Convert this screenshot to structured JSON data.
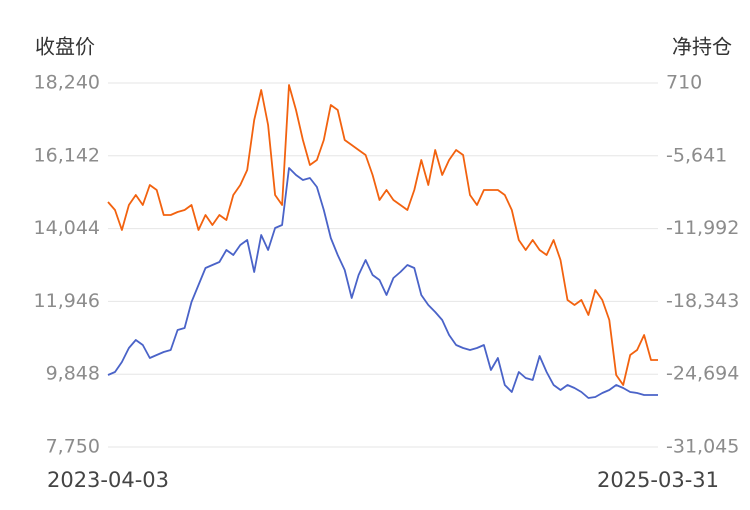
{
  "chart_data": {
    "type": "line",
    "y_label": "收盘价",
    "y2_label": "净持仓",
    "categories": [
      "2023-04-03",
      null,
      null,
      null,
      null,
      null,
      null,
      null,
      null,
      null,
      null,
      null,
      null,
      null,
      null,
      null,
      null,
      null,
      null,
      null,
      null,
      null,
      null,
      null,
      null,
      null,
      null,
      null,
      null,
      null,
      null,
      null,
      null,
      null,
      null,
      null,
      null,
      null,
      null,
      null,
      null,
      null,
      null,
      null,
      null,
      null,
      null,
      null,
      null,
      null,
      null,
      null,
      null,
      null,
      null,
      null,
      null,
      null,
      null,
      null,
      null,
      null,
      null,
      null,
      null,
      null,
      null,
      null,
      null,
      null,
      null,
      null,
      null,
      null,
      null,
      null,
      null,
      null,
      null,
      "2025-03-31"
    ],
    "series": [
      {
        "color": "#4a63c8",
        "axis": "y",
        "values": [
          9825,
          9911,
          10200,
          10603,
          10834,
          10690,
          10315,
          10401,
          10488,
          10546,
          11122,
          11180,
          11929,
          12419,
          12909,
          12995,
          13082,
          13427,
          13283,
          13572,
          13716,
          12794,
          13860,
          13427,
          14062,
          14148,
          15791,
          15589,
          15445,
          15503,
          15243,
          14580,
          13773,
          13283,
          12851,
          12044,
          12707,
          13139,
          12707,
          12563,
          12131,
          12621,
          12794,
          12995,
          12909,
          12131,
          11842,
          11641,
          11410,
          10978,
          10690,
          10603,
          10546,
          10603,
          10690,
          9969,
          10315,
          9537,
          9335,
          9911,
          9739,
          9681,
          10373,
          9911,
          9537,
          9393,
          9537,
          9450,
          9335,
          9162,
          9191,
          9306,
          9393,
          9537,
          9450,
          9335,
          9306,
          9249,
          9249,
          9249
        ]
      },
      {
        "color": "#f2620f",
        "axis": "y2",
        "values": [
          -9671,
          -10369,
          -12114,
          -9933,
          -9061,
          -9933,
          -8188,
          -8624,
          -10805,
          -10805,
          -10544,
          -10369,
          -9933,
          -12114,
          -10805,
          -11678,
          -10805,
          -11242,
          -9061,
          -8188,
          -6880,
          -2518,
          100,
          -2954,
          -9061,
          -9933,
          536,
          -1645,
          -4262,
          -6443,
          -6007,
          -4262,
          -1209,
          -1645,
          -4262,
          -4699,
          -5135,
          -5571,
          -7316,
          -9497,
          -8624,
          -9497,
          -9933,
          -10369,
          -8624,
          -6007,
          -8188,
          -5135,
          -7316,
          -6007,
          -5135,
          -5571,
          -9061,
          -9933,
          -8624,
          -8624,
          -8624,
          -9061,
          -10369,
          -12986,
          -13859,
          -12986,
          -13859,
          -14295,
          -12986,
          -14731,
          -18221,
          -18657,
          -18221,
          -19529,
          -17348,
          -18221,
          -19966,
          -24764,
          -25636,
          -23019,
          -22583,
          -21274,
          -23455,
          -23455
        ]
      }
    ],
    "ylim": [
      7750,
      18240
    ],
    "yticks": [
      {
        "value": 7750,
        "label": "7,750"
      },
      {
        "value": 9848,
        "label": "9,848"
      },
      {
        "value": 11946,
        "label": "11,946"
      },
      {
        "value": 14044,
        "label": "14,044"
      },
      {
        "value": 16142,
        "label": "16,142"
      },
      {
        "value": 18240,
        "label": "18,240"
      }
    ],
    "y2lim": [
      -31045,
      710
    ],
    "y2ticks": [
      {
        "value": -31045,
        "label": "-31,045"
      },
      {
        "value": -24694,
        "label": "-24,694"
      },
      {
        "value": -18343,
        "label": "-18,343"
      },
      {
        "value": -11992,
        "label": "-11,992"
      },
      {
        "value": -5641,
        "label": "-5,641"
      },
      710
    ],
    "grid": true
  }
}
